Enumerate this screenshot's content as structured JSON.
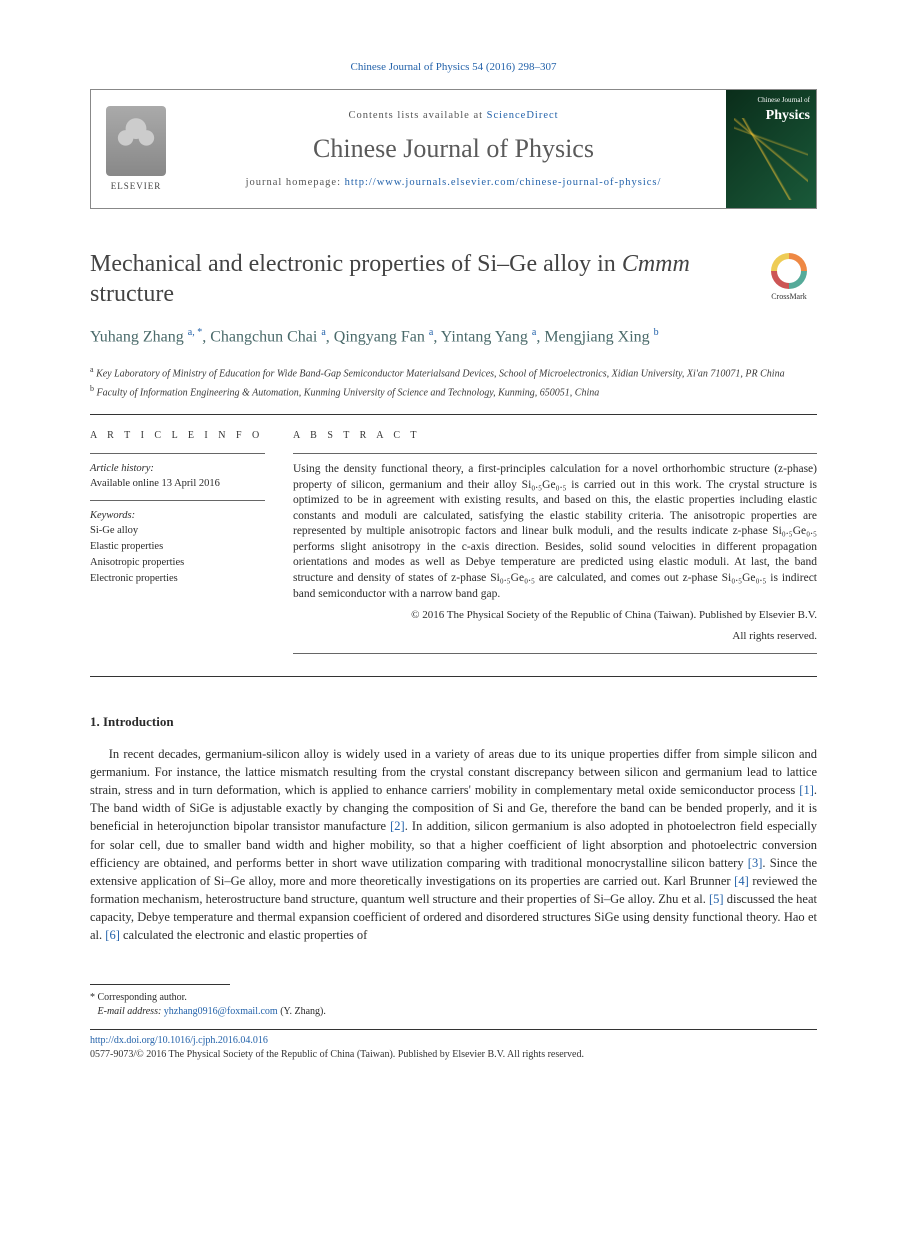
{
  "citation": "Chinese Journal of Physics 54 (2016) 298–307",
  "header": {
    "contents_prefix": "Contents lists available at ",
    "contents_link": "ScienceDirect",
    "journal_name": "Chinese Journal of Physics",
    "homepage_prefix": "journal homepage: ",
    "homepage_url": "http://www.journals.elsevier.com/chinese-journal-of-physics/",
    "elsevier_label": "ELSEVIER",
    "cover_small": "Chinese Journal of",
    "cover_big": "Physics"
  },
  "title_pre": "Mechanical and electronic properties of Si–Ge alloy in ",
  "title_ital": "Cmmm",
  "title_post": " structure",
  "crossmark": "CrossMark",
  "authors_html": "Yuhang Zhang <sup>a, *</sup>, Changchun Chai <sup>a</sup>, Qingyang Fan <sup>a</sup>, Yintang Yang <sup>a</sup>, Mengjiang Xing <sup>b</sup>",
  "affiliations": [
    {
      "sup": "a",
      "text": " Key Laboratory of Ministry of Education for Wide Band-Gap Semiconductor Materialsand Devices, School of Microelectronics, Xidian University, Xi'an 710071, PR China"
    },
    {
      "sup": "b",
      "text": " Faculty of Information Engineering & Automation, Kunming University of Science and Technology, Kunming, 650051, China"
    }
  ],
  "info": {
    "head": "A R T I C L E   I N F O",
    "history_label": "Article history:",
    "history_value": "Available online 13 April 2016",
    "keywords_label": "Keywords:",
    "keywords": [
      "Si-Ge alloy",
      "Elastic properties",
      "Anisotropic properties",
      "Electronic properties"
    ]
  },
  "abstract": {
    "head": "A B S T R A C T",
    "text": "Using the density functional theory, a first-principles calculation for a novel orthorhombic structure (z-phase) property of silicon, germanium and their alloy Si₀.₅Ge₀.₅ is carried out in this work. The crystal structure is optimized to be in agreement with existing results, and based on this, the elastic properties including elastic constants and moduli are calculated, satisfying the elastic stability criteria. The anisotropic properties are represented by multiple anisotropic factors and linear bulk moduli, and the results indicate z-phase Si₀.₅Ge₀.₅ performs slight anisotropy in the c-axis direction. Besides, solid sound velocities in different propagation orientations and modes as well as Debye temperature are predicted using elastic moduli. At last, the band structure and density of states of z-phase Si₀.₅Ge₀.₅ are calculated, and comes out z-phase Si₀.₅Ge₀.₅ is indirect band semiconductor with a narrow band gap.",
    "copyright1": "© 2016 The Physical Society of the Republic of China (Taiwan). Published by Elsevier B.V.",
    "copyright2": "All rights reserved."
  },
  "intro": {
    "head": "1. Introduction",
    "paragraph_html": "In recent decades, germanium-silicon alloy is widely used in a variety of areas due to its unique properties differ from simple silicon and germanium. For instance, the lattice mismatch resulting from the crystal constant discrepancy between silicon and germanium lead to lattice strain, stress and in turn deformation, which is applied to enhance carriers' mobility in complementary metal oxide semiconductor process <a href='#'>[1]</a>. The band width of SiGe is adjustable exactly by changing the composition of Si and Ge, therefore the band can be bended properly, and it is beneficial in heterojunction bipolar transistor manufacture <a href='#'>[2]</a>. In addition, silicon germanium is also adopted in photoelectron field especially for solar cell, due to smaller band width and higher mobility, so that a higher coefficient of light absorption and photoelectric conversion efficiency are obtained, and performs better in short wave utilization comparing with traditional monocrystalline silicon battery <a href='#'>[3]</a>. Since the extensive application of Si–Ge alloy, more and more theoretically investigations on its properties are carried out. Karl Brunner <a href='#'>[4]</a> reviewed the formation mechanism, heterostructure band structure, quantum well structure and their properties of Si–Ge alloy. Zhu et al. <a href='#'>[5]</a> discussed the heat capacity, Debye temperature and thermal expansion coefficient of ordered and disordered structures SiGe using density functional theory. Hao et al. <a href='#'>[6]</a> calculated the electronic and elastic properties of"
  },
  "footnote": {
    "corr": "* Corresponding author.",
    "email_label": "E-mail address: ",
    "email": "yhzhang0916@foxmail.com",
    "email_suffix": " (Y. Zhang)."
  },
  "bottom": {
    "doi": "http://dx.doi.org/10.1016/j.cjph.2016.04.016",
    "issn_cp": "0577-9073/© 2016 The Physical Society of the Republic of China (Taiwan). Published by Elsevier B.V. All rights reserved."
  }
}
